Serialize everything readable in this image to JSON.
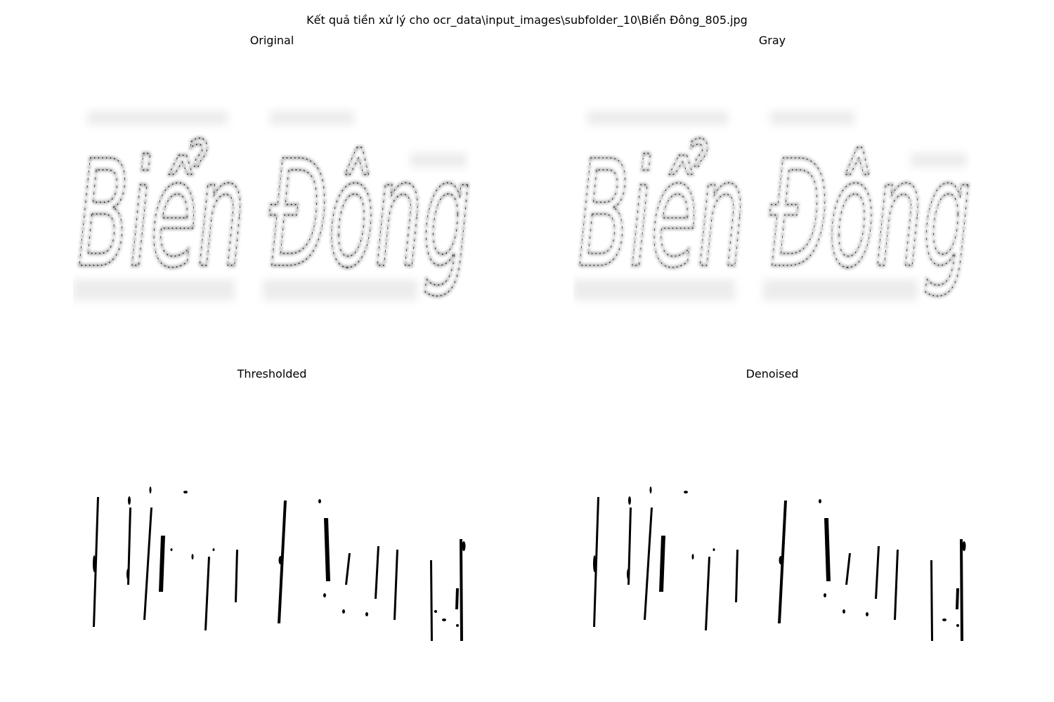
{
  "figure": {
    "title": "Kết quả tiền xử lý cho ocr_data\\input_images\\subfolder_10\\Biển Đông_805.jpg"
  },
  "panels": [
    {
      "title": "Original"
    },
    {
      "title": "Gray"
    },
    {
      "title": "Thresholded"
    },
    {
      "title": "Denoised"
    }
  ],
  "image_text": "Biển Đông"
}
